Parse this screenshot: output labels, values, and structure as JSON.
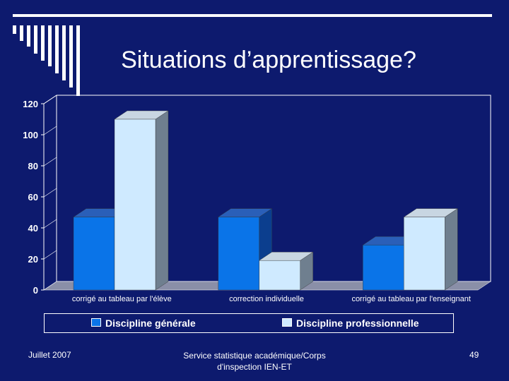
{
  "slide": {
    "title": "Situations d’apprentissage?",
    "footer_left": "Juillet 2007",
    "footer_center_line1": "Service statistique académique/Corps",
    "footer_center_line2": "d'inspection IEN-ET",
    "page_number": "49"
  },
  "colors": {
    "background": "#0d1a6e",
    "series_general": "#0a74e8",
    "series_professionnelle": "#cfeaff",
    "accent": "#ffffff"
  },
  "chart_data": {
    "type": "bar",
    "title": "",
    "xlabel": "",
    "ylabel": "",
    "ylim": [
      0,
      120
    ],
    "yticks": [
      0,
      20,
      40,
      60,
      80,
      100,
      120
    ],
    "categories": [
      "corrigé au tableau par l'élève",
      "correction individuelle",
      "corrigé au tableau par l'enseignant"
    ],
    "series": [
      {
        "name": "Discipline générale",
        "values": [
          47,
          47,
          29
        ]
      },
      {
        "name": "Discipline professionnelle",
        "values": [
          110,
          19,
          47
        ]
      }
    ],
    "legend": "bottom"
  }
}
